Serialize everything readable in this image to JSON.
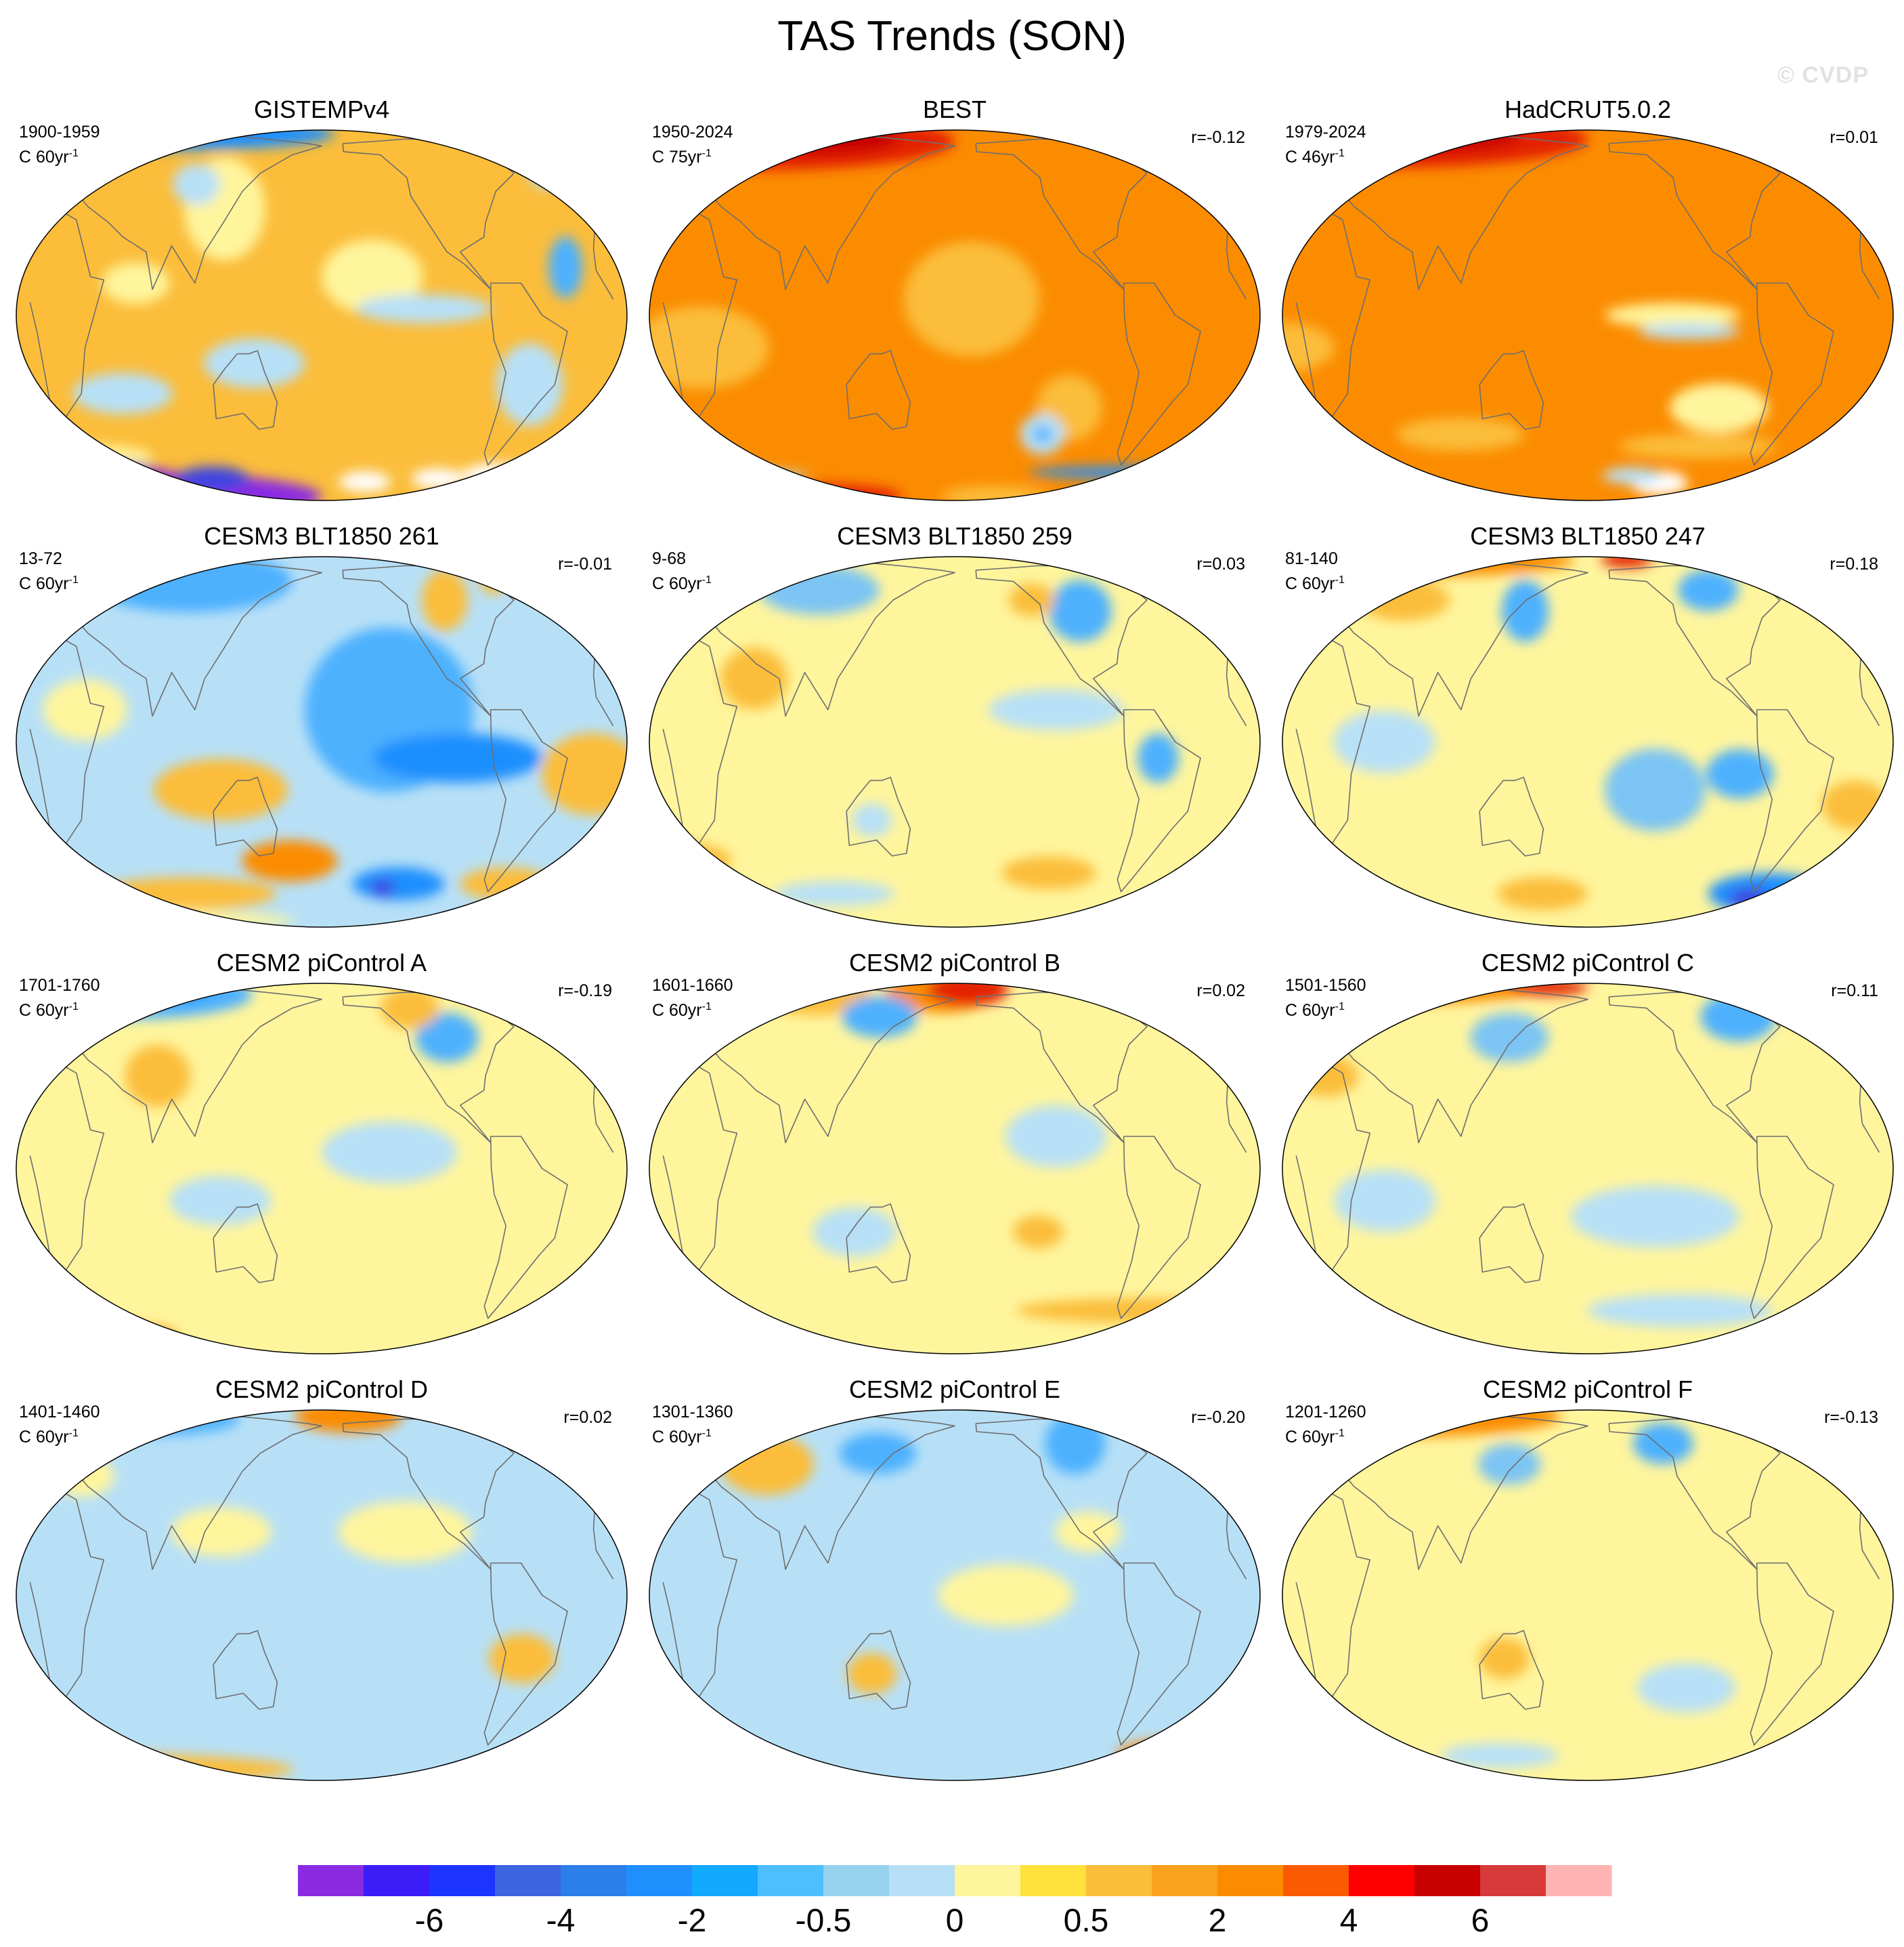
{
  "title": "TAS Trends (SON)",
  "watermark": "© CVDP",
  "panels": [
    {
      "title": "GISTEMPv4",
      "period": "1900-1959",
      "units": "C 60yr",
      "units_exp": "-1",
      "corr": "",
      "base": "#fbbd3a",
      "blobs": [
        {
          "lon": 60,
          "lat": 78,
          "rx": 130,
          "ry": 8,
          "color": "#1f8ffe"
        },
        {
          "lon": 15,
          "lat": 84,
          "rx": 70,
          "ry": 5,
          "color": "#e40000"
        },
        {
          "lon": -150,
          "lat": 12,
          "rx": 30,
          "ry": 18,
          "color": "#fff59d"
        },
        {
          "lon": 120,
          "lat": 35,
          "rx": 25,
          "ry": 25,
          "color": "#fff59d"
        },
        {
          "lon": 70,
          "lat": 10,
          "rx": 20,
          "ry": 10,
          "color": "#fff59d"
        },
        {
          "lon": -120,
          "lat": 2,
          "rx": 40,
          "ry": 7,
          "color": "#b7e0f7"
        },
        {
          "lon": -55,
          "lat": -22,
          "rx": 20,
          "ry": 20,
          "color": "#b7e0f7"
        },
        {
          "lon": 140,
          "lat": -15,
          "rx": 30,
          "ry": 12,
          "color": "#b7e0f7"
        },
        {
          "lon": 60,
          "lat": -25,
          "rx": 30,
          "ry": 10,
          "color": "#b7e0f7"
        },
        {
          "lon": -35,
          "lat": 15,
          "rx": 10,
          "ry": 15,
          "color": "#4db1fe"
        },
        {
          "lon": 100,
          "lat": 45,
          "rx": 15,
          "ry": 10,
          "color": "#b7e0f7"
        },
        {
          "lon": -30,
          "lat": 55,
          "rx": 15,
          "ry": 12,
          "color": "#b7e0f7"
        },
        {
          "lon": 30,
          "lat": -50,
          "rx": 40,
          "ry": 6,
          "color": "#fff59d"
        },
        {
          "lon": 0,
          "lat": -78,
          "rx": 180,
          "ry": 13,
          "color": "#8a2be2"
        },
        {
          "lon": 30,
          "lat": -62,
          "rx": 50,
          "ry": 8,
          "color": "#8a2be2"
        },
        {
          "lon": -60,
          "lat": -60,
          "rx": 25,
          "ry": 6,
          "color": "#ffffff"
        },
        {
          "lon": -100,
          "lat": -62,
          "rx": 18,
          "ry": 5,
          "color": "#ffffff"
        },
        {
          "lon": -150,
          "lat": -64,
          "rx": 18,
          "ry": 5,
          "color": "#ffffff"
        },
        {
          "lon": -30,
          "lat": -64,
          "rx": 25,
          "ry": 5,
          "color": "#ff8080"
        },
        {
          "lon": -35,
          "lat": -65,
          "rx": 10,
          "ry": 3,
          "color": "#b60000"
        },
        {
          "lon": 105,
          "lat": -62,
          "rx": 25,
          "ry": 6,
          "color": "#3c44e0"
        }
      ]
    },
    {
      "title": "BEST",
      "period": "1950-2024",
      "units": "C 75yr",
      "units_exp": "-1",
      "corr": "r=-0.12",
      "base": "#fb8c00",
      "blobs": [
        {
          "lon": 40,
          "lat": 70,
          "rx": 140,
          "ry": 14,
          "color": "#e42200"
        },
        {
          "lon": 80,
          "lat": 73,
          "rx": 60,
          "ry": 8,
          "color": "#c80000"
        },
        {
          "lon": -170,
          "lat": 5,
          "rx": 40,
          "ry": 28,
          "color": "#fbbd3a"
        },
        {
          "lon": 30,
          "lat": -10,
          "rx": 40,
          "ry": 20,
          "color": "#fbbd3a"
        },
        {
          "lon": -110,
          "lat": -30,
          "rx": 20,
          "ry": 16,
          "color": "#fbbd3a"
        },
        {
          "lon": -125,
          "lat": -40,
          "rx": 14,
          "ry": 10,
          "color": "#b7e0f7"
        },
        {
          "lon": -125,
          "lat": -40,
          "rx": 6,
          "ry": 4,
          "color": "#4db1fe"
        },
        {
          "lon": -60,
          "lat": -58,
          "rx": 70,
          "ry": 3,
          "color": "#1f8ffe"
        },
        {
          "lon": 20,
          "lat": -60,
          "rx": 60,
          "ry": 3,
          "color": "#b7e0f7"
        },
        {
          "lon": -150,
          "lat": -78,
          "rx": 40,
          "ry": 5,
          "color": "#fbbd3a"
        },
        {
          "lon": 80,
          "lat": -78,
          "rx": 60,
          "ry": 6,
          "color": "#e42200"
        }
      ]
    },
    {
      "title": "HadCRUT5.0.2",
      "period": "1979-2024",
      "units": "C 46yr",
      "units_exp": "-1",
      "corr": "r=0.01",
      "base": "#fb8c00",
      "blobs": [
        {
          "lon": 30,
          "lat": 72,
          "rx": 150,
          "ry": 14,
          "color": "#e42200"
        },
        {
          "lon": 50,
          "lat": 75,
          "rx": 80,
          "ry": 8,
          "color": "#c80000"
        },
        {
          "lon": -130,
          "lat": 0,
          "rx": 40,
          "ry": 6,
          "color": "#fff59d"
        },
        {
          "lon": -120,
          "lat": -5,
          "rx": 30,
          "ry": 4,
          "color": "#b7e0f7"
        },
        {
          "lon": -100,
          "lat": -30,
          "rx": 30,
          "ry": 12,
          "color": "#fff59d"
        },
        {
          "lon": -110,
          "lat": -45,
          "rx": 50,
          "ry": 6,
          "color": "#fbbd3a"
        },
        {
          "lon": 100,
          "lat": -40,
          "rx": 40,
          "ry": 8,
          "color": "#fbbd3a"
        },
        {
          "lon": 0,
          "lat": -10,
          "rx": 30,
          "ry": 12,
          "color": "#fbbd3a"
        },
        {
          "lon": -130,
          "lat": -65,
          "rx": 20,
          "ry": 6,
          "color": "#ffffff"
        },
        {
          "lon": -150,
          "lat": -60,
          "rx": 20,
          "ry": 4,
          "color": "#b7e0f7"
        }
      ]
    },
    {
      "title": "CESM3 BLT1850 261",
      "period": "13-72",
      "units": "C 60yr",
      "units_exp": "-1",
      "corr": "r=-0.01",
      "base": "#b7e0f7",
      "blobs": [
        {
          "lon": -140,
          "lat": 10,
          "rx": 50,
          "ry": 40,
          "color": "#4db1fe"
        },
        {
          "lon": -100,
          "lat": -5,
          "rx": 50,
          "ry": 12,
          "color": "#1f8ffe"
        },
        {
          "lon": 90,
          "lat": 60,
          "rx": 70,
          "ry": 15,
          "color": "#4db1fe"
        },
        {
          "lon": -100,
          "lat": 50,
          "rx": 15,
          "ry": 15,
          "color": "#fbbd3a"
        },
        {
          "lon": -60,
          "lat": 65,
          "rx": 10,
          "ry": 10,
          "color": "#fbbd3a"
        },
        {
          "lon": 120,
          "lat": -15,
          "rx": 40,
          "ry": 15,
          "color": "#fbbd3a"
        },
        {
          "lon": -20,
          "lat": -10,
          "rx": 30,
          "ry": 20,
          "color": "#fbbd3a"
        },
        {
          "lon": 40,
          "lat": 10,
          "rx": 25,
          "ry": 15,
          "color": "#fff59d"
        },
        {
          "lon": -130,
          "lat": -50,
          "rx": 30,
          "ry": 8,
          "color": "#1f8ffe"
        },
        {
          "lon": -140,
          "lat": -52,
          "rx": 8,
          "ry": 4,
          "color": "#3c44e0"
        },
        {
          "lon": -60,
          "lat": -50,
          "rx": 30,
          "ry": 8,
          "color": "#fbbd3a"
        },
        {
          "lon": 90,
          "lat": -55,
          "rx": 60,
          "ry": 8,
          "color": "#fbbd3a"
        },
        {
          "lon": 160,
          "lat": -40,
          "rx": 30,
          "ry": 10,
          "color": "#fb8c00"
        },
        {
          "lon": 0,
          "lat": -75,
          "rx": 160,
          "ry": 6,
          "color": "#fff59d"
        }
      ]
    },
    {
      "title": "CESM3 BLT1850 259",
      "period": "9-68",
      "units": "C 60yr",
      "units_exp": "-1",
      "corr": "r=0.03",
      "base": "#fff59d",
      "blobs": [
        {
          "lon": -100,
          "lat": 45,
          "rx": 20,
          "ry": 15,
          "color": "#4db1fe"
        },
        {
          "lon": -130,
          "lat": 50,
          "rx": 15,
          "ry": 8,
          "color": "#fbbd3a"
        },
        {
          "lon": 90,
          "lat": 55,
          "rx": 40,
          "ry": 12,
          "color": "#7cc4f4"
        },
        {
          "lon": -60,
          "lat": -5,
          "rx": 12,
          "ry": 12,
          "color": "#4db1fe"
        },
        {
          "lon": 130,
          "lat": -25,
          "rx": 12,
          "ry": 8,
          "color": "#b7e0f7"
        },
        {
          "lon": -120,
          "lat": 10,
          "rx": 40,
          "ry": 10,
          "color": "#b7e0f7"
        },
        {
          "lon": 0,
          "lat": -40,
          "rx": 40,
          "ry": 10,
          "color": "#fbbd3a"
        },
        {
          "lon": -120,
          "lat": -45,
          "rx": 30,
          "ry": 8,
          "color": "#fbbd3a"
        },
        {
          "lon": 100,
          "lat": -55,
          "rx": 40,
          "ry": 6,
          "color": "#b7e0f7"
        },
        {
          "lon": 60,
          "lat": 20,
          "rx": 20,
          "ry": 15,
          "color": "#fbbd3a"
        }
      ]
    },
    {
      "title": "CESM3 BLT1850 247",
      "period": "81-140",
      "units": "C 60yr",
      "units_exp": "-1",
      "corr": "r=0.18",
      "base": "#fff59d",
      "blobs": [
        {
          "lon": 30,
          "lat": 78,
          "rx": 140,
          "ry": 8,
          "color": "#fb8c00"
        },
        {
          "lon": -150,
          "lat": 80,
          "rx": 20,
          "ry": 4,
          "color": "#e42200"
        },
        {
          "lon": 140,
          "lat": 45,
          "rx": 15,
          "ry": 15,
          "color": "#4db1fe"
        },
        {
          "lon": -100,
          "lat": 55,
          "rx": 20,
          "ry": 10,
          "color": "#4db1fe"
        },
        {
          "lon": 60,
          "lat": 50,
          "rx": 30,
          "ry": 10,
          "color": "#fbbd3a"
        },
        {
          "lon": -140,
          "lat": -15,
          "rx": 30,
          "ry": 20,
          "color": "#7cc4f4"
        },
        {
          "lon": -90,
          "lat": -10,
          "rx": 20,
          "ry": 12,
          "color": "#4db1fe"
        },
        {
          "lon": 60,
          "lat": 0,
          "rx": 30,
          "ry": 15,
          "color": "#b7e0f7"
        },
        {
          "lon": -60,
          "lat": -55,
          "rx": 40,
          "ry": 10,
          "color": "#1f8ffe"
        },
        {
          "lon": -70,
          "lat": -58,
          "rx": 15,
          "ry": 5,
          "color": "#3c44e0"
        },
        {
          "lon": -20,
          "lat": -20,
          "rx": 20,
          "ry": 12,
          "color": "#fbbd3a"
        },
        {
          "lon": 150,
          "lat": -55,
          "rx": 30,
          "ry": 8,
          "color": "#fbbd3a"
        }
      ]
    },
    {
      "title": "CESM2 piControl A",
      "period": "1701-1760",
      "units": "C 60yr",
      "units_exp": "-1",
      "corr": "r=-0.19",
      "base": "#fff59d",
      "blobs": [
        {
          "lon": 40,
          "lat": 70,
          "rx": 90,
          "ry": 12,
          "color": "#4db1fe"
        },
        {
          "lon": 60,
          "lat": 75,
          "rx": 40,
          "ry": 6,
          "color": "#1f8ffe"
        },
        {
          "lon": -100,
          "lat": 45,
          "rx": 20,
          "ry": 12,
          "color": "#4db1fe"
        },
        {
          "lon": -140,
          "lat": 5,
          "rx": 40,
          "ry": 15,
          "color": "#b7e0f7"
        },
        {
          "lon": 120,
          "lat": -10,
          "rx": 30,
          "ry": 12,
          "color": "#b7e0f7"
        },
        {
          "lon": -120,
          "lat": 60,
          "rx": 20,
          "ry": 10,
          "color": "#fbbd3a"
        },
        {
          "lon": 30,
          "lat": -65,
          "rx": 50,
          "ry": 6,
          "color": "#fb8c00"
        },
        {
          "lon": 40,
          "lat": -68,
          "rx": 10,
          "ry": 3,
          "color": "#e42200"
        },
        {
          "lon": 80,
          "lat": 30,
          "rx": 20,
          "ry": 15,
          "color": "#fbbd3a"
        }
      ]
    },
    {
      "title": "CESM2 piControl B",
      "period": "1601-1660",
      "units": "C 60yr",
      "units_exp": "-1",
      "corr": "r=0.02",
      "base": "#fff59d",
      "blobs": [
        {
          "lon": 170,
          "lat": 72,
          "rx": 40,
          "ry": 10,
          "color": "#fb8c00"
        },
        {
          "lon": -170,
          "lat": 75,
          "rx": 30,
          "ry": 8,
          "color": "#e42200"
        },
        {
          "lon": 80,
          "lat": 70,
          "rx": 40,
          "ry": 10,
          "color": "#fbbd3a"
        },
        {
          "lon": 130,
          "lat": 55,
          "rx": 25,
          "ry": 10,
          "color": "#4db1fe"
        },
        {
          "lon": -120,
          "lat": 10,
          "rx": 30,
          "ry": 15,
          "color": "#b7e0f7"
        },
        {
          "lon": -60,
          "lat": -50,
          "rx": 80,
          "ry": 6,
          "color": "#fbbd3a"
        },
        {
          "lon": 120,
          "lat": -20,
          "rx": 25,
          "ry": 12,
          "color": "#b7e0f7"
        },
        {
          "lon": -130,
          "lat": -20,
          "rx": 15,
          "ry": 8,
          "color": "#fbbd3a"
        }
      ]
    },
    {
      "title": "CESM2 piControl C",
      "period": "1501-1560",
      "units": "C 60yr",
      "units_exp": "-1",
      "corr": "r=0.11",
      "base": "#fff59d",
      "blobs": [
        {
          "lon": 30,
          "lat": 78,
          "rx": 120,
          "ry": 8,
          "color": "#fb8c00"
        },
        {
          "lon": 150,
          "lat": 78,
          "rx": 30,
          "ry": 4,
          "color": "#e42200"
        },
        {
          "lon": -80,
          "lat": 55,
          "rx": 25,
          "ry": 12,
          "color": "#4db1fe"
        },
        {
          "lon": 130,
          "lat": 45,
          "rx": 25,
          "ry": 12,
          "color": "#7cc4f4"
        },
        {
          "lon": -140,
          "lat": -15,
          "rx": 50,
          "ry": 15,
          "color": "#b7e0f7"
        },
        {
          "lon": 60,
          "lat": -10,
          "rx": 30,
          "ry": 15,
          "color": "#b7e0f7"
        },
        {
          "lon": -120,
          "lat": -50,
          "rx": 60,
          "ry": 8,
          "color": "#b7e0f7"
        },
        {
          "lon": 20,
          "lat": 30,
          "rx": 20,
          "ry": 10,
          "color": "#fbbd3a"
        }
      ]
    },
    {
      "title": "CESM2 piControl D",
      "period": "1401-1460",
      "units": "C 60yr",
      "units_exp": "-1",
      "corr": "r=0.02",
      "base": "#b7e0f7",
      "blobs": [
        {
          "lon": -160,
          "lat": 75,
          "rx": 40,
          "ry": 8,
          "color": "#fb8c00"
        },
        {
          "lon": 60,
          "lat": 72,
          "rx": 60,
          "ry": 8,
          "color": "#4db1fe"
        },
        {
          "lon": -130,
          "lat": 20,
          "rx": 40,
          "ry": 15,
          "color": "#fff59d"
        },
        {
          "lon": 120,
          "lat": 20,
          "rx": 30,
          "ry": 12,
          "color": "#fff59d"
        },
        {
          "lon": -60,
          "lat": -20,
          "rx": 20,
          "ry": 12,
          "color": "#fbbd3a"
        },
        {
          "lon": 0,
          "lat": -70,
          "rx": 160,
          "ry": 8,
          "color": "#fbbd3a"
        },
        {
          "lon": 30,
          "lat": 40,
          "rx": 20,
          "ry": 10,
          "color": "#fff59d"
        }
      ]
    },
    {
      "title": "CESM2 piControl E",
      "period": "1301-1360",
      "units": "C 60yr",
      "units_exp": "-1",
      "corr": "r=-0.20",
      "base": "#b7e0f7",
      "blobs": [
        {
          "lon": -100,
          "lat": 55,
          "rx": 20,
          "ry": 15,
          "color": "#4db1fe"
        },
        {
          "lon": 130,
          "lat": 50,
          "rx": 25,
          "ry": 10,
          "color": "#4db1fe"
        },
        {
          "lon": 60,
          "lat": 45,
          "rx": 30,
          "ry": 15,
          "color": "#fbbd3a"
        },
        {
          "lon": 130,
          "lat": -25,
          "rx": 15,
          "ry": 10,
          "color": "#fbbd3a"
        },
        {
          "lon": -150,
          "lat": 0,
          "rx": 40,
          "ry": 15,
          "color": "#fff59d"
        },
        {
          "lon": -30,
          "lat": -60,
          "rx": 40,
          "ry": 8,
          "color": "#fb8c00"
        },
        {
          "lon": -100,
          "lat": 20,
          "rx": 20,
          "ry": 10,
          "color": "#fff59d"
        }
      ]
    },
    {
      "title": "CESM2 piControl F",
      "period": "1201-1260",
      "units": "C 60yr",
      "units_exp": "-1",
      "corr": "r=-0.13",
      "base": "#fff59d",
      "blobs": [
        {
          "lon": 40,
          "lat": 75,
          "rx": 120,
          "ry": 10,
          "color": "#fb8c00"
        },
        {
          "lon": -130,
          "lat": 55,
          "rx": 20,
          "ry": 10,
          "color": "#4db1fe"
        },
        {
          "lon": 130,
          "lat": 45,
          "rx": 20,
          "ry": 10,
          "color": "#7cc4f4"
        },
        {
          "lon": -120,
          "lat": -30,
          "rx": 30,
          "ry": 12,
          "color": "#b7e0f7"
        },
        {
          "lon": 120,
          "lat": -60,
          "rx": 40,
          "ry": 6,
          "color": "#b7e0f7"
        },
        {
          "lon": -20,
          "lat": -60,
          "rx": 40,
          "ry": 6,
          "color": "#fb8c00"
        },
        {
          "lon": 130,
          "lat": -20,
          "rx": 15,
          "ry": 10,
          "color": "#fbbd3a"
        }
      ]
    }
  ],
  "colorbar": {
    "colors": [
      "#8a2be2",
      "#3c1cf7",
      "#1c34ff",
      "#3c64e0",
      "#2c7ee8",
      "#1f8ffe",
      "#12aaff",
      "#4dbefe",
      "#97d2ee",
      "#b7e0f7",
      "#fff59d",
      "#ffe13c",
      "#fbbd3a",
      "#fba21e",
      "#fb8c00",
      "#fb5a00",
      "#fe0000",
      "#c80000",
      "#d83a3a",
      "#ffb4b4"
    ],
    "labels": [
      {
        "after": 1,
        "text": "-6"
      },
      {
        "after": 3,
        "text": "-4"
      },
      {
        "after": 5,
        "text": "-2"
      },
      {
        "after": 7,
        "text": "-0.5"
      },
      {
        "after": 9,
        "text": "0"
      },
      {
        "after": 11,
        "text": "0.5"
      },
      {
        "after": 13,
        "text": "2"
      },
      {
        "after": 15,
        "text": "4"
      },
      {
        "after": 17,
        "text": "6"
      }
    ]
  }
}
